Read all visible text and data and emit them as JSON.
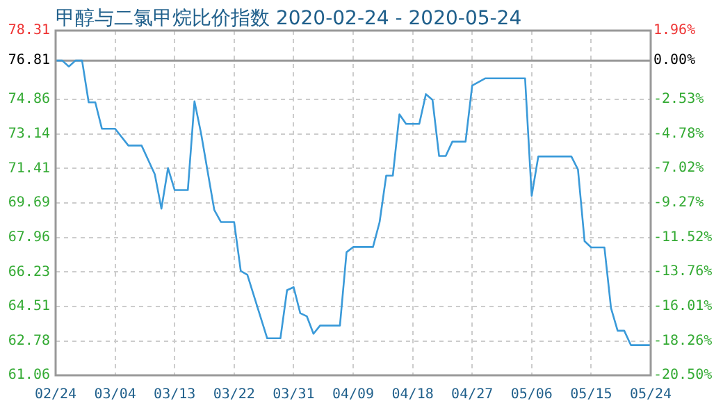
{
  "chart_data": {
    "type": "line",
    "title": "甲醇与二氯甲烷比价指数 2020-02-24 - 2020-05-24",
    "x": [
      "2020-02-24",
      "2020-02-25",
      "2020-02-26",
      "2020-02-27",
      "2020-02-28",
      "2020-02-29",
      "2020-03-01",
      "2020-03-02",
      "2020-03-04",
      "2020-03-06",
      "2020-03-08",
      "2020-03-10",
      "2020-03-11",
      "2020-03-12",
      "2020-03-13",
      "2020-03-15",
      "2020-03-16",
      "2020-03-17",
      "2020-03-19",
      "2020-03-20",
      "2020-03-22",
      "2020-03-23",
      "2020-03-24",
      "2020-03-27",
      "2020-03-29",
      "2020-03-30",
      "2020-03-31",
      "2020-04-01",
      "2020-04-02",
      "2020-04-03",
      "2020-04-04",
      "2020-04-07",
      "2020-04-08",
      "2020-04-09",
      "2020-04-12",
      "2020-04-13",
      "2020-04-14",
      "2020-04-15",
      "2020-04-16",
      "2020-04-17",
      "2020-04-19",
      "2020-04-20",
      "2020-04-21",
      "2020-04-22",
      "2020-04-23",
      "2020-04-24",
      "2020-04-26",
      "2020-04-27",
      "2020-04-29",
      "2020-05-05",
      "2020-05-06",
      "2020-05-07",
      "2020-05-12",
      "2020-05-13",
      "2020-05-14",
      "2020-05-15",
      "2020-05-17",
      "2020-05-18",
      "2020-05-19",
      "2020-05-20",
      "2020-05-21",
      "2020-05-24"
    ],
    "series": [
      {
        "color": "#3a9ad9",
        "values": [
          76.81,
          76.81,
          76.51,
          76.81,
          76.81,
          74.72,
          74.72,
          73.4,
          73.4,
          72.56,
          72.56,
          71.12,
          69.4,
          71.43,
          70.33,
          70.33,
          74.77,
          73.16,
          69.33,
          68.73,
          68.73,
          66.28,
          66.09,
          62.91,
          62.91,
          65.32,
          65.47,
          64.17,
          64.01,
          63.14,
          63.55,
          63.55,
          67.22,
          67.48,
          67.48,
          68.73,
          71.05,
          71.05,
          74.12,
          73.64,
          73.64,
          75.13,
          74.84,
          72.03,
          72.03,
          72.75,
          72.75,
          75.56,
          75.92,
          75.92,
          70.04,
          72.01,
          72.01,
          71.36,
          67.77,
          67.46,
          67.46,
          64.42,
          63.29,
          63.29,
          62.57,
          62.57
        ]
      }
    ],
    "xlim": [
      "2020-02-24",
      "2020-05-24"
    ],
    "xticks": [
      {
        "value": "2020-02-24",
        "label": "02/24"
      },
      {
        "value": "2020-03-04",
        "label": "03/04"
      },
      {
        "value": "2020-03-13",
        "label": "03/13"
      },
      {
        "value": "2020-03-22",
        "label": "03/22"
      },
      {
        "value": "2020-03-31",
        "label": "03/31"
      },
      {
        "value": "2020-04-09",
        "label": "04/09"
      },
      {
        "value": "2020-04-18",
        "label": "04/18"
      },
      {
        "value": "2020-04-27",
        "label": "04/27"
      },
      {
        "value": "2020-05-06",
        "label": "05/06"
      },
      {
        "value": "2020-05-15",
        "label": "05/15"
      },
      {
        "value": "2020-05-24",
        "label": "05/24"
      }
    ],
    "ylim": [
      61.06,
      78.31
    ],
    "yticks": [
      61.06,
      62.78,
      64.51,
      66.23,
      67.96,
      69.69,
      71.41,
      73.14,
      74.86,
      76.81,
      78.31
    ],
    "y2lim": [
      -20.5,
      1.96
    ],
    "y2ticks": [
      {
        "value": -20.5,
        "label": "-20.50%"
      },
      {
        "value": -18.26,
        "label": "-18.26%"
      },
      {
        "value": -16.01,
        "label": "-16.01%"
      },
      {
        "value": -13.76,
        "label": "-13.76%"
      },
      {
        "value": -11.52,
        "label": "-11.52%"
      },
      {
        "value": -9.27,
        "label": "-9.27%"
      },
      {
        "value": -7.02,
        "label": "-7.02%"
      },
      {
        "value": -4.78,
        "label": "-4.78%"
      },
      {
        "value": -2.53,
        "label": "-2.53%"
      },
      {
        "value": 0,
        "label": "0.00%"
      },
      {
        "value": 1.96,
        "label": "1.96%"
      }
    ],
    "ref_lines": [
      {
        "axis": "y",
        "value": 76.81,
        "color": "#999999"
      }
    ],
    "grid": true,
    "legend": false,
    "marker": "none",
    "line_style": "solid"
  }
}
